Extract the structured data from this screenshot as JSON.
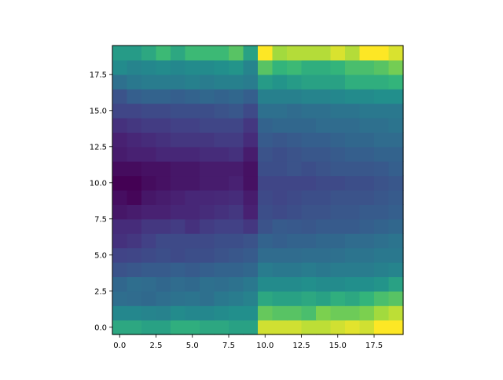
{
  "chart_data": {
    "type": "heatmap",
    "title": "",
    "xlabel": "",
    "ylabel": "",
    "colormap": "viridis",
    "origin": "lower",
    "x_range": [
      -0.5,
      19.5
    ],
    "y_range": [
      -0.5,
      19.5
    ],
    "x_ticks": [
      0,
      2.5,
      5,
      7.5,
      10,
      12.5,
      15,
      17.5
    ],
    "x_tick_labels": [
      "0.0",
      "2.5",
      "5.0",
      "7.5",
      "10.0",
      "12.5",
      "15.0",
      "17.5"
    ],
    "y_ticks": [
      0,
      2.5,
      5,
      7.5,
      10,
      12.5,
      15,
      17.5
    ],
    "y_tick_labels": [
      "0.0",
      "2.5",
      "5.0",
      "7.5",
      "10.0",
      "12.5",
      "15.0",
      "17.5"
    ],
    "value_range": [
      0,
      1
    ],
    "description_of_values": "values normalized 0..1 on the viridis scale",
    "rows_from_bottom": [
      [
        0.7,
        0.7,
        0.68,
        0.68,
        0.72,
        0.72,
        0.7,
        0.7,
        0.68,
        0.68,
        0.95,
        0.95,
        0.95,
        0.93,
        0.93,
        0.95,
        0.97,
        0.95,
        1.0,
        1.0
      ],
      [
        0.58,
        0.58,
        0.56,
        0.55,
        0.6,
        0.58,
        0.58,
        0.6,
        0.62,
        0.62,
        0.82,
        0.8,
        0.8,
        0.78,
        0.85,
        0.83,
        0.83,
        0.85,
        0.9,
        0.93
      ],
      [
        0.45,
        0.44,
        0.43,
        0.45,
        0.47,
        0.48,
        0.46,
        0.5,
        0.52,
        0.55,
        0.7,
        0.68,
        0.68,
        0.7,
        0.68,
        0.72,
        0.7,
        0.74,
        0.78,
        0.8
      ],
      [
        0.42,
        0.45,
        0.44,
        0.42,
        0.44,
        0.43,
        0.46,
        0.45,
        0.47,
        0.5,
        0.6,
        0.6,
        0.6,
        0.62,
        0.6,
        0.6,
        0.62,
        0.62,
        0.64,
        0.68
      ],
      [
        0.32,
        0.34,
        0.36,
        0.36,
        0.38,
        0.36,
        0.38,
        0.4,
        0.4,
        0.42,
        0.52,
        0.5,
        0.5,
        0.52,
        0.5,
        0.52,
        0.52,
        0.52,
        0.54,
        0.56
      ],
      [
        0.25,
        0.26,
        0.28,
        0.3,
        0.28,
        0.3,
        0.3,
        0.32,
        0.34,
        0.36,
        0.44,
        0.44,
        0.44,
        0.45,
        0.45,
        0.46,
        0.48,
        0.48,
        0.5,
        0.5
      ],
      [
        0.18,
        0.2,
        0.24,
        0.28,
        0.28,
        0.28,
        0.28,
        0.3,
        0.3,
        0.32,
        0.4,
        0.38,
        0.4,
        0.4,
        0.42,
        0.42,
        0.44,
        0.44,
        0.46,
        0.48
      ],
      [
        0.16,
        0.16,
        0.2,
        0.2,
        0.22,
        0.18,
        0.22,
        0.24,
        0.24,
        0.2,
        0.32,
        0.36,
        0.35,
        0.34,
        0.36,
        0.36,
        0.36,
        0.38,
        0.4,
        0.42
      ],
      [
        0.08,
        0.1,
        0.12,
        0.12,
        0.14,
        0.14,
        0.16,
        0.18,
        0.2,
        0.12,
        0.3,
        0.28,
        0.3,
        0.32,
        0.32,
        0.34,
        0.34,
        0.36,
        0.36,
        0.38
      ],
      [
        0.05,
        0.02,
        0.08,
        0.1,
        0.12,
        0.14,
        0.14,
        0.15,
        0.16,
        0.1,
        0.28,
        0.26,
        0.28,
        0.3,
        0.3,
        0.32,
        0.32,
        0.32,
        0.34,
        0.36
      ],
      [
        0.0,
        0.0,
        0.04,
        0.06,
        0.08,
        0.08,
        0.1,
        0.1,
        0.12,
        0.06,
        0.26,
        0.26,
        0.26,
        0.26,
        0.28,
        0.28,
        0.3,
        0.3,
        0.32,
        0.34
      ],
      [
        0.04,
        0.04,
        0.06,
        0.06,
        0.08,
        0.08,
        0.1,
        0.1,
        0.1,
        0.06,
        0.3,
        0.3,
        0.32,
        0.3,
        0.32,
        0.34,
        0.34,
        0.34,
        0.35,
        0.38
      ],
      [
        0.1,
        0.12,
        0.12,
        0.14,
        0.14,
        0.14,
        0.16,
        0.16,
        0.18,
        0.1,
        0.32,
        0.3,
        0.32,
        0.34,
        0.34,
        0.36,
        0.38,
        0.38,
        0.4,
        0.4
      ],
      [
        0.12,
        0.14,
        0.16,
        0.18,
        0.2,
        0.2,
        0.2,
        0.22,
        0.22,
        0.16,
        0.36,
        0.34,
        0.36,
        0.38,
        0.38,
        0.4,
        0.42,
        0.42,
        0.44,
        0.44
      ],
      [
        0.18,
        0.2,
        0.22,
        0.22,
        0.24,
        0.24,
        0.26,
        0.26,
        0.26,
        0.2,
        0.4,
        0.42,
        0.42,
        0.42,
        0.44,
        0.44,
        0.44,
        0.46,
        0.46,
        0.48
      ],
      [
        0.26,
        0.26,
        0.28,
        0.28,
        0.3,
        0.3,
        0.3,
        0.32,
        0.34,
        0.28,
        0.46,
        0.46,
        0.44,
        0.46,
        0.46,
        0.48,
        0.48,
        0.5,
        0.5,
        0.5
      ],
      [
        0.32,
        0.38,
        0.4,
        0.4,
        0.38,
        0.4,
        0.42,
        0.4,
        0.42,
        0.38,
        0.54,
        0.54,
        0.54,
        0.56,
        0.56,
        0.58,
        0.6,
        0.6,
        0.62,
        0.62
      ],
      [
        0.46,
        0.5,
        0.52,
        0.52,
        0.52,
        0.54,
        0.52,
        0.54,
        0.54,
        0.52,
        0.66,
        0.64,
        0.66,
        0.68,
        0.68,
        0.68,
        0.72,
        0.72,
        0.72,
        0.74
      ],
      [
        0.6,
        0.56,
        0.58,
        0.6,
        0.58,
        0.6,
        0.6,
        0.62,
        0.64,
        0.56,
        0.8,
        0.74,
        0.76,
        0.72,
        0.72,
        0.74,
        0.78,
        0.78,
        0.8,
        0.84
      ],
      [
        0.66,
        0.66,
        0.7,
        0.76,
        0.7,
        0.76,
        0.76,
        0.76,
        0.8,
        0.68,
        1.0,
        0.9,
        0.92,
        0.92,
        0.92,
        0.96,
        0.92,
        1.0,
        1.0,
        0.96
      ]
    ]
  }
}
